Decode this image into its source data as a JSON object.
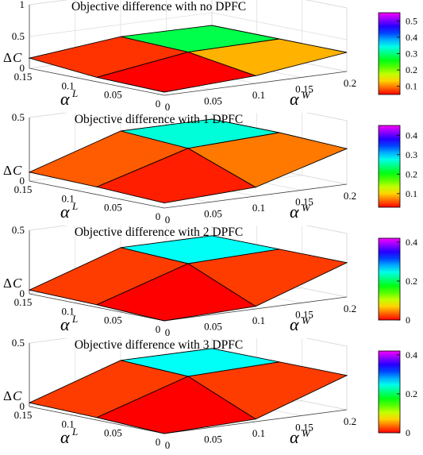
{
  "figure": {
    "charts": [
      {
        "title": "Objective difference with no DPFC"
      },
      {
        "title": "Objective difference with 1 DPFC"
      },
      {
        "title": "Objective difference with 2 DPFC"
      },
      {
        "title": "Objective difference with 3 DPFC"
      }
    ]
  },
  "chart_data": [
    {
      "type": "surface",
      "title": "Objective difference with no DPFC",
      "xlabel": "α^W",
      "ylabel": "α^L",
      "zlabel": "ΔC",
      "x": [
        0,
        0.1,
        0.2
      ],
      "y": [
        0,
        0.075,
        0.15
      ],
      "z": [
        [
          0.05,
          0.12,
          0.3
        ],
        [
          0.07,
          0.28,
          0.3
        ],
        [
          0.16,
          0.31,
          0.3
        ]
      ],
      "xlim": [
        0,
        0.2
      ],
      "ylim": [
        0,
        0.15
      ],
      "zlim": [
        0,
        1
      ],
      "xticks": [
        "0",
        "0.05",
        "0.1",
        "0.15",
        "0.2"
      ],
      "yticks": [
        "0",
        "0.05",
        "0.1",
        "0.15"
      ],
      "zticks": [
        "0",
        "0.5",
        "1"
      ],
      "colorbar": {
        "ticks": [
          "0.1",
          "0.2",
          "0.3",
          "0.4",
          "0.5"
        ],
        "range": [
          0.05,
          0.55
        ]
      },
      "grid": true,
      "colormap": "hsv"
    },
    {
      "type": "surface",
      "title": "Objective difference with 1 DPFC",
      "xlabel": "α^W",
      "ylabel": "α^L",
      "zlabel": "ΔC",
      "x": [
        0,
        0.1,
        0.2
      ],
      "y": [
        0,
        0.075,
        0.15
      ],
      "z": [
        [
          0.04,
          0.07,
          0.28
        ],
        [
          0.06,
          0.27,
          0.3
        ],
        [
          0.07,
          0.3,
          0.3
        ]
      ],
      "xlim": [
        0,
        0.2
      ],
      "ylim": [
        0,
        0.15
      ],
      "zlim": [
        0,
        0.5
      ],
      "xticks": [
        "0",
        "0.05",
        "0.1",
        "0.15",
        "0.2"
      ],
      "yticks": [
        "0",
        "0.05",
        "0.1",
        "0.15"
      ],
      "zticks": [
        "0",
        "0.5"
      ],
      "colorbar": {
        "ticks": [
          "0.1",
          "0.2",
          "0.3",
          "0.4"
        ],
        "range": [
          0.03,
          0.45
        ]
      },
      "grid": true,
      "colormap": "hsv"
    },
    {
      "type": "surface",
      "title": "Objective difference with 2 DPFC",
      "xlabel": "α^W",
      "ylabel": "α^L",
      "zlabel": "ΔC",
      "x": [
        0,
        0.1,
        0.2
      ],
      "y": [
        0,
        0.075,
        0.15
      ],
      "z": [
        [
          0.0,
          0.02,
          0.27
        ],
        [
          0.02,
          0.25,
          0.27
        ],
        [
          0.03,
          0.27,
          0.27
        ]
      ],
      "xlim": [
        0,
        0.2
      ],
      "ylim": [
        0,
        0.15
      ],
      "zlim": [
        0,
        0.5
      ],
      "xticks": [
        "0",
        "0.05",
        "0.1",
        "0.15",
        "0.2"
      ],
      "yticks": [
        "0",
        "0.05",
        "0.1",
        "0.15"
      ],
      "zticks": [
        "0",
        "0.5"
      ],
      "colorbar": {
        "ticks": [
          "0",
          "0.2",
          "0.4"
        ],
        "range": [
          0,
          0.42
        ]
      },
      "grid": true,
      "colormap": "hsv"
    },
    {
      "type": "surface",
      "title": "Objective difference with 3 DPFC",
      "xlabel": "α^W",
      "ylabel": "α^L",
      "zlabel": "ΔC",
      "x": [
        0,
        0.1,
        0.2
      ],
      "y": [
        0,
        0.075,
        0.15
      ],
      "z": [
        [
          0.0,
          0.02,
          0.27
        ],
        [
          0.02,
          0.25,
          0.27
        ],
        [
          0.03,
          0.27,
          0.27
        ]
      ],
      "xlim": [
        0,
        0.2
      ],
      "ylim": [
        0,
        0.15
      ],
      "zlim": [
        0,
        0.5
      ],
      "xticks": [
        "0",
        "0.05",
        "0.1",
        "0.15",
        "0.2"
      ],
      "yticks": [
        "0",
        "0.05",
        "0.1",
        "0.15"
      ],
      "zticks": [
        "0",
        "0.5"
      ],
      "colorbar": {
        "ticks": [
          "0",
          "0.2",
          "0.4"
        ],
        "range": [
          0,
          0.42
        ]
      },
      "grid": true,
      "colormap": "hsv"
    }
  ]
}
